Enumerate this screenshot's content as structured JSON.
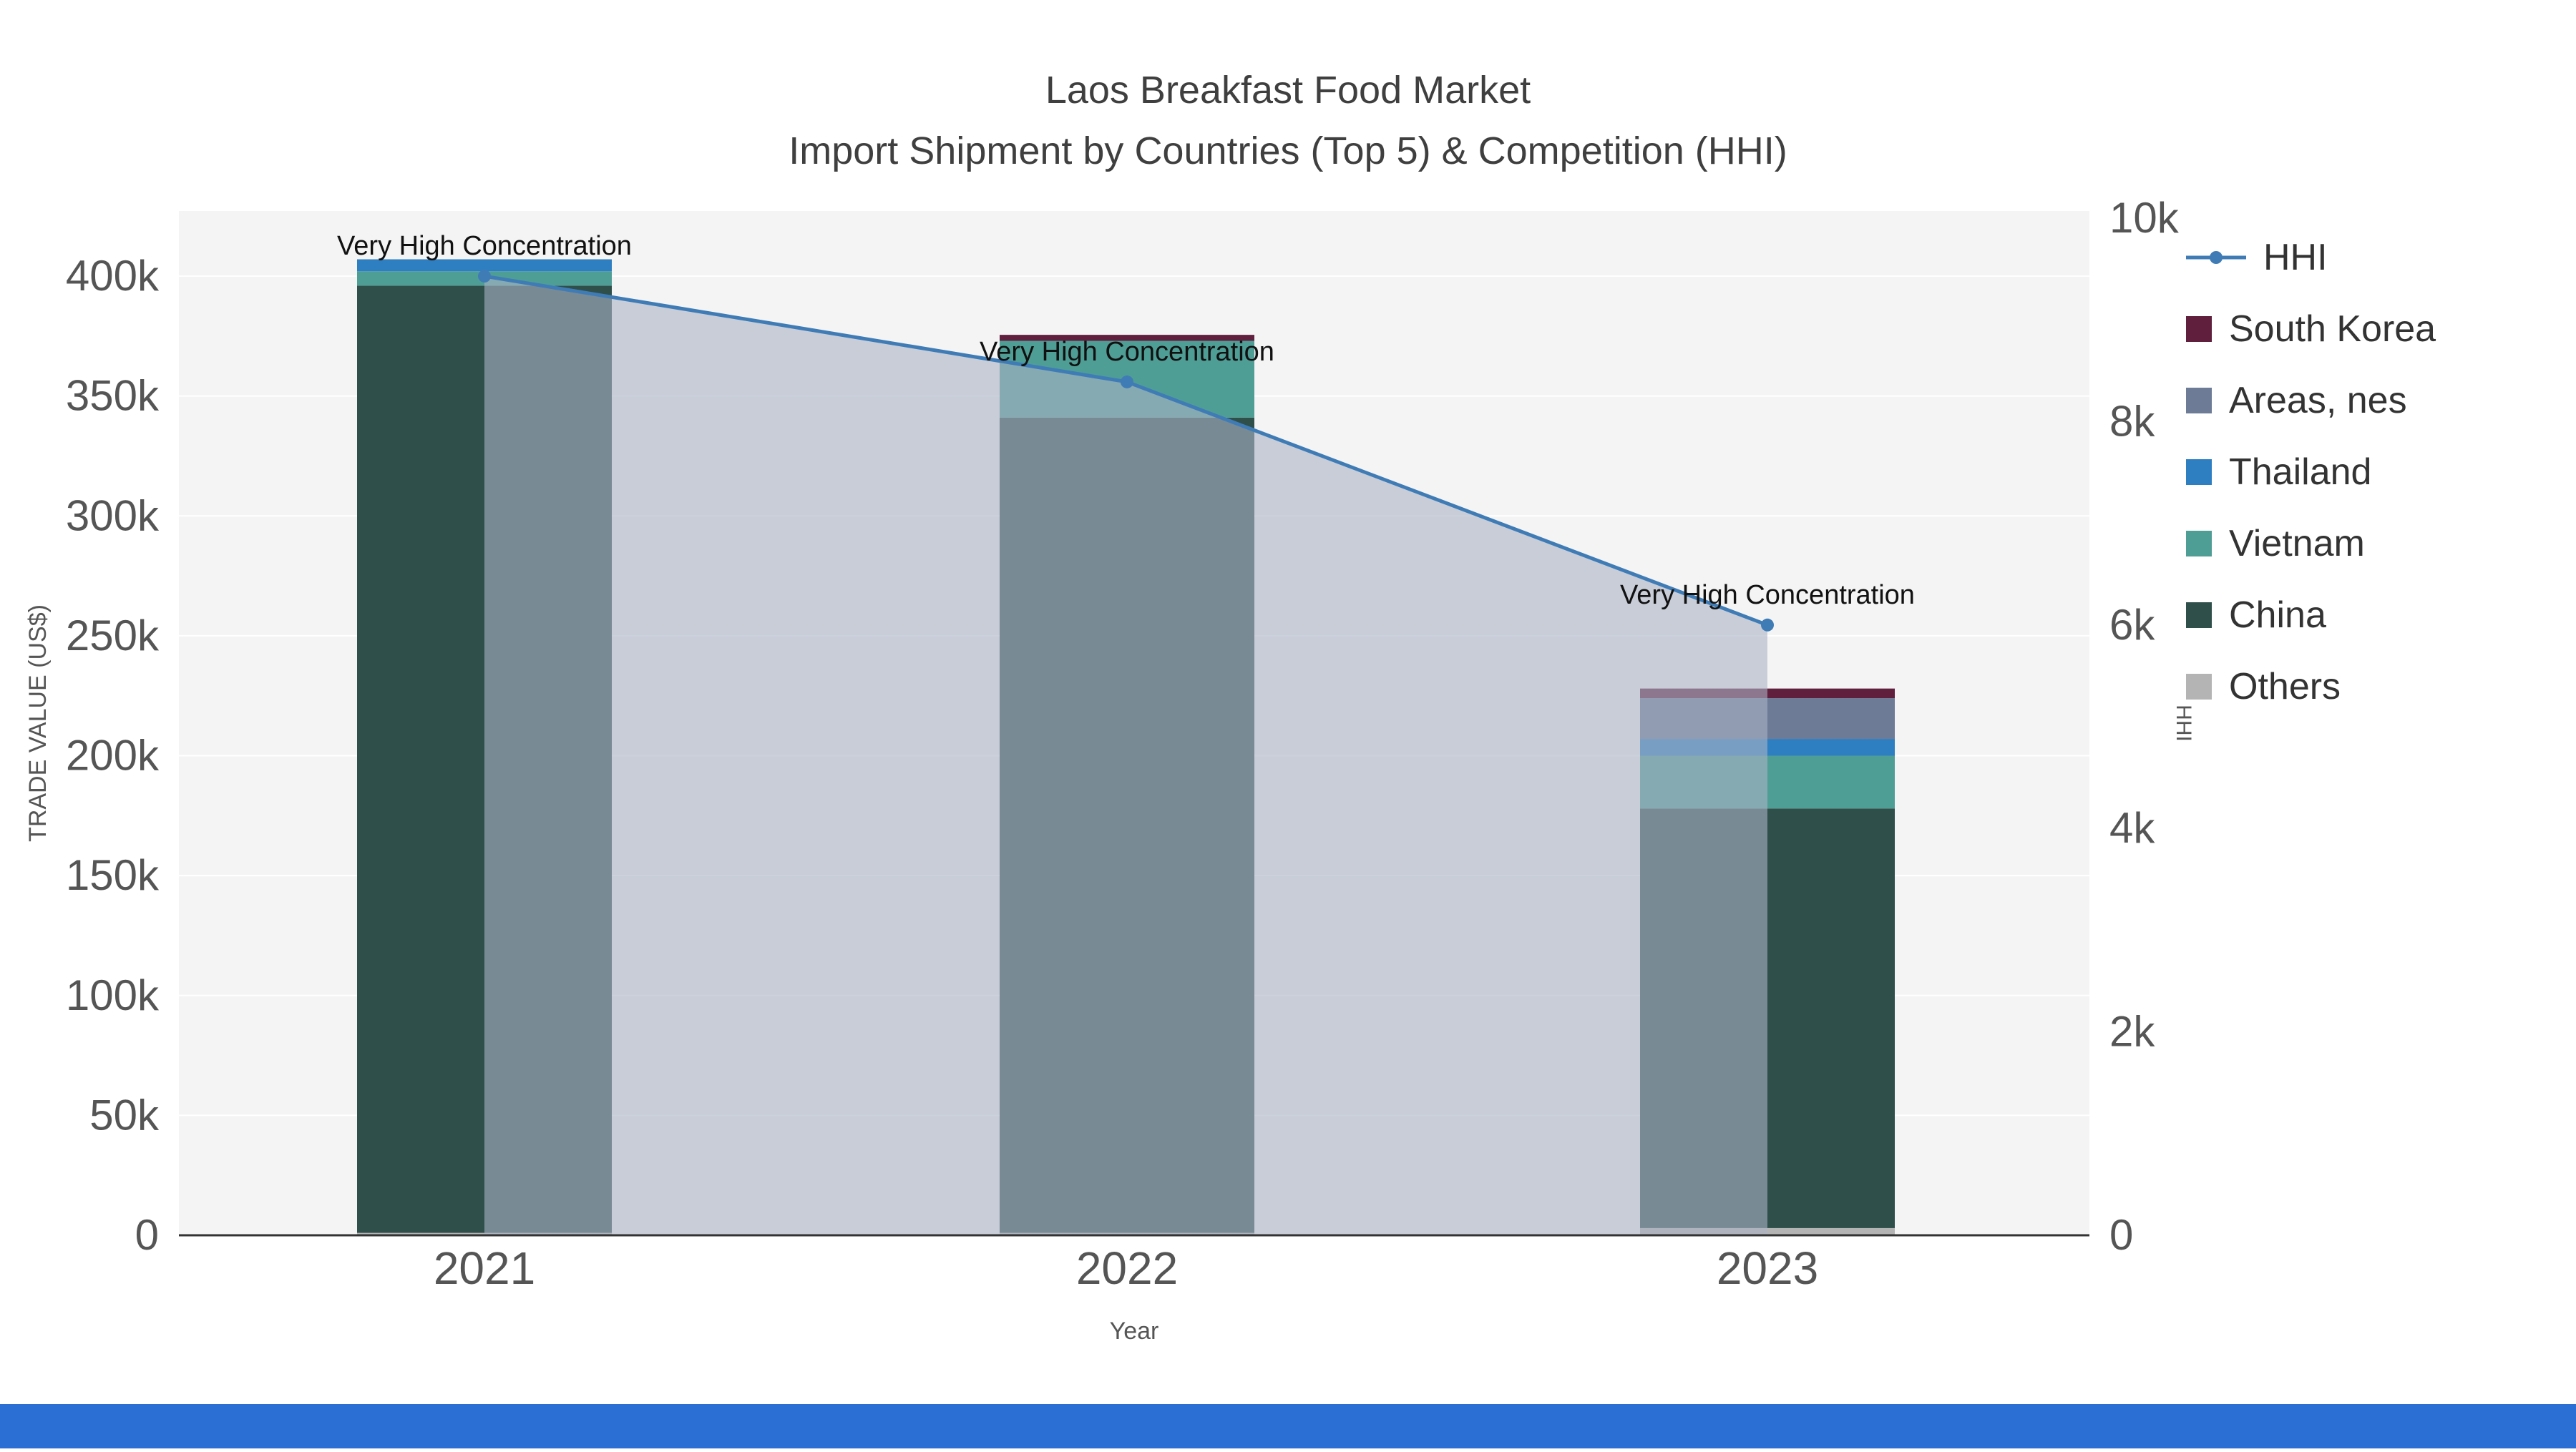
{
  "page": {
    "bottom_bar_color": "#2b6fd4"
  },
  "header": {
    "title": "Laos Breakfast Food Market",
    "subtitle": "Import Shipment by Countries (Top 5) & Competition (HHI)"
  },
  "chart_data": {
    "type": "combo-stacked-bar-line",
    "categories": [
      "2021",
      "2022",
      "2023"
    ],
    "xlabel": "Year",
    "y_left": {
      "label": "TRADE VALUE (US$)",
      "lim": [
        0,
        400000
      ],
      "ticks": [
        0,
        50000,
        100000,
        150000,
        200000,
        250000,
        300000,
        350000,
        400000
      ],
      "tick_labels": [
        "0",
        "50k",
        "100k",
        "150k",
        "200k",
        "250k",
        "300k",
        "350k",
        "400k"
      ]
    },
    "y_right": {
      "label": "HHI",
      "lim": [
        0,
        10000
      ],
      "ticks": [
        0,
        2000,
        4000,
        6000,
        8000,
        10000
      ],
      "tick_labels": [
        "0",
        "2k",
        "4k",
        "6k",
        "8k",
        "10k"
      ]
    },
    "bar_series": [
      {
        "name": "Others",
        "color": "#b4b4b4",
        "values": [
          1000,
          1000,
          3000
        ]
      },
      {
        "name": "China",
        "color": "#2f4f4b",
        "values": [
          395000,
          340000,
          175000
        ]
      },
      {
        "name": "Vietnam",
        "color": "#4f9e96",
        "values": [
          6000,
          32000,
          22000
        ]
      },
      {
        "name": "Thailand",
        "color": "#2e7fc1",
        "values": [
          5000,
          0,
          7000
        ]
      },
      {
        "name": "Areas, nes",
        "color": "#6d7b97",
        "values": [
          0,
          0,
          17000
        ]
      },
      {
        "name": "South Korea",
        "color": "#5f1f3d",
        "values": [
          0,
          2500,
          4000
        ]
      }
    ],
    "line_series": {
      "name": "HHI",
      "color": "#3f7cb6",
      "area_fill": "#aab3c4",
      "area_opacity": 0.6,
      "values": [
        9430,
        8390,
        6000
      ]
    },
    "annotations": [
      "Very High Concentration",
      "Very High Concentration",
      "Very High Concentration"
    ],
    "plot_bg": "#f4f4f4",
    "grid_color": "#ffffff",
    "axis_color": "#333333",
    "tick_color": "#555555",
    "annotation_color": "#111111",
    "legend_order": [
      "HHI",
      "South Korea",
      "Areas, nes",
      "Thailand",
      "Vietnam",
      "China",
      "Others"
    ]
  }
}
